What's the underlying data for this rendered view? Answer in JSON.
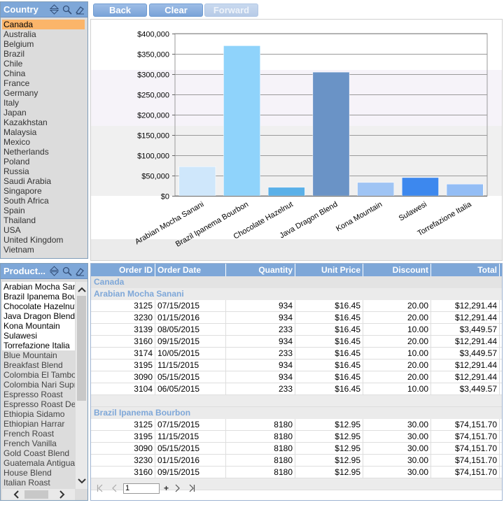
{
  "toolbar": {
    "back_label": "Back",
    "clear_label": "Clear",
    "forward_label": "Forward"
  },
  "country_filter": {
    "title": "Country",
    "selected": "Canada",
    "items": [
      "Canada",
      "Australia",
      "Belgium",
      "Brazil",
      "Chile",
      "China",
      "France",
      "Germany",
      "Italy",
      "Japan",
      "Kazakhstan",
      "Malaysia",
      "Mexico",
      "Netherlands",
      "Poland",
      "Russia",
      "Saudi Arabia",
      "Singapore",
      "South Africa",
      "Spain",
      "Thailand",
      "USA",
      "United Kingdom",
      "Vietnam"
    ]
  },
  "product_filter": {
    "title": "Product...",
    "active_items": [
      "Arabian Mocha Sanani",
      "Brazil Ipanema Bourbon",
      "Chocolate Hazelnut",
      "Java Dragon Blend",
      "Kona Mountain",
      "Sulawesi",
      "Torrefazione Italia"
    ],
    "inactive_items": [
      "Blue Mountain",
      "Breakfast Blend",
      "Colombia El Tambo",
      "Colombia Nari Supremo",
      "Espresso Roast",
      "Espresso Roast Decaf",
      "Ethiopia Sidamo",
      "Ethiopian Harrar",
      "French Roast",
      "French Vanilla",
      "Gold Coast Blend",
      "Guatemala Antigua",
      "House Blend",
      "Italian Roast"
    ]
  },
  "chart_data": {
    "type": "bar",
    "categories": [
      "Arabian Mocha Sanani",
      "Brazil Ipanema Bourbon",
      "Chocolate Hazelnut",
      "Java Dragon Blend",
      "Kona Mountain",
      "Sulawesi",
      "Torrefazione Italia"
    ],
    "values": [
      72000,
      370000,
      21000,
      305000,
      33000,
      45000,
      29000
    ],
    "colors": [
      "#cfe7fb",
      "#8fd3fb",
      "#5ab0e8",
      "#6a93c6",
      "#9fc4f4",
      "#3d88ee",
      "#93bdf5"
    ],
    "ylim": [
      0,
      400000
    ],
    "yticks": [
      "$0",
      "$50,000",
      "$100,000",
      "$150,000",
      "$200,000",
      "$250,000",
      "$300,000",
      "$350,000",
      "$400,000"
    ],
    "grid": true
  },
  "table": {
    "columns": [
      "Order ID",
      "Order Date",
      "Quantity",
      "Unit Price",
      "Discount",
      "Total"
    ],
    "country": "Canada",
    "groups": [
      {
        "product": "Arabian Mocha Sanani",
        "rows": [
          [
            "3125",
            "07/15/2015",
            "934",
            "$16.45",
            "20.00",
            "$12,291.44"
          ],
          [
            "3230",
            "01/15/2016",
            "934",
            "$16.45",
            "20.00",
            "$12,291.44"
          ],
          [
            "3139",
            "08/05/2015",
            "233",
            "$16.45",
            "10.00",
            "$3,449.57"
          ],
          [
            "3160",
            "09/15/2015",
            "934",
            "$16.45",
            "20.00",
            "$12,291.44"
          ],
          [
            "3174",
            "10/05/2015",
            "233",
            "$16.45",
            "10.00",
            "$3,449.57"
          ],
          [
            "3195",
            "11/15/2015",
            "934",
            "$16.45",
            "20.00",
            "$12,291.44"
          ],
          [
            "3090",
            "05/15/2015",
            "934",
            "$16.45",
            "20.00",
            "$12,291.44"
          ],
          [
            "3104",
            "06/05/2015",
            "233",
            "$16.45",
            "10.00",
            "$3,449.57"
          ]
        ]
      },
      {
        "product": "Brazil Ipanema Bourbon",
        "rows": [
          [
            "3125",
            "07/15/2015",
            "8180",
            "$12.95",
            "30.00",
            "$74,151.70"
          ],
          [
            "3195",
            "11/15/2015",
            "8180",
            "$12.95",
            "30.00",
            "$74,151.70"
          ],
          [
            "3090",
            "05/15/2015",
            "8180",
            "$12.95",
            "30.00",
            "$74,151.70"
          ],
          [
            "3230",
            "01/15/2016",
            "8180",
            "$12.95",
            "30.00",
            "$74,151.70"
          ],
          [
            "3160",
            "09/15/2015",
            "8180",
            "$12.95",
            "30.00",
            "$74,151.70"
          ]
        ]
      }
    ]
  },
  "pager": {
    "page_value": "1",
    "add_label": "+"
  }
}
